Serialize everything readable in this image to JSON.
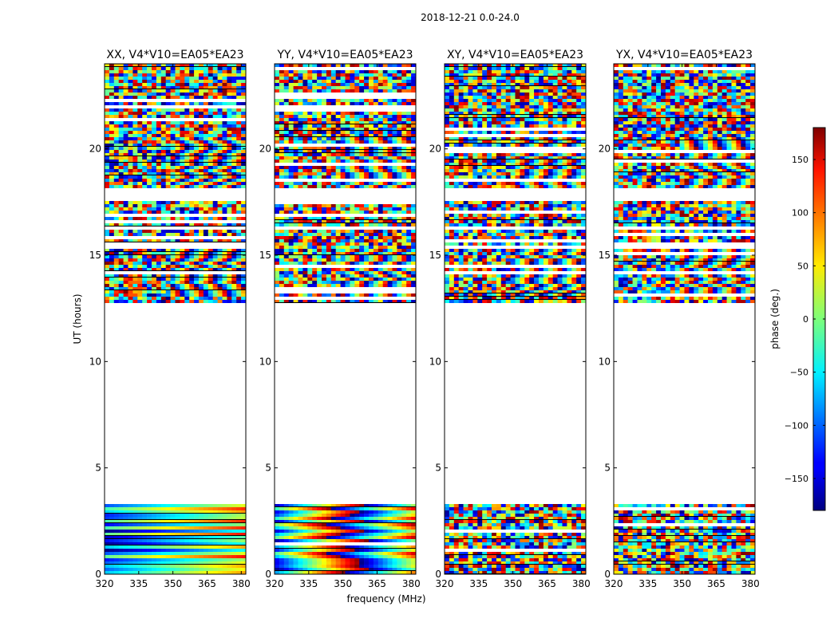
{
  "figure_title": "2018-12-21 0.0-24.0",
  "chart_data": {
    "type": "heatmap",
    "suptitle": "2018-12-21 0.0-24.0",
    "xlabel": "frequency (MHz)",
    "ylabel": "UT (hours)",
    "x_range": [
      320,
      382
    ],
    "y_range": [
      0,
      24
    ],
    "x_ticks": [
      320,
      335,
      350,
      365,
      380
    ],
    "y_ticks": [
      0,
      5,
      10,
      15,
      20
    ],
    "colorbar": {
      "label": "phase (deg.)",
      "range": [
        -180,
        180
      ],
      "ticks": [
        150,
        100,
        50,
        0,
        -50,
        -100,
        -150
      ],
      "colormap": "jet"
    },
    "panels": [
      {
        "title": "XX, V4*V10=EA05*EA23",
        "polarization": "XX"
      },
      {
        "title": "YY, V4*V10=EA05*EA23",
        "polarization": "YY"
      },
      {
        "title": "XY, V4*V10=EA05*EA23",
        "polarization": "XY"
      },
      {
        "title": "YX, V4*V10=EA05*EA23",
        "polarization": "YX"
      }
    ],
    "data_coverage_hours": [
      [
        0.0,
        3.3
      ],
      [
        12.8,
        24.0
      ]
    ],
    "flagged_gaps_hours": [
      [
        3.3,
        12.8
      ],
      [
        16.2,
        16.4
      ],
      [
        17.6,
        18.1
      ]
    ]
  }
}
